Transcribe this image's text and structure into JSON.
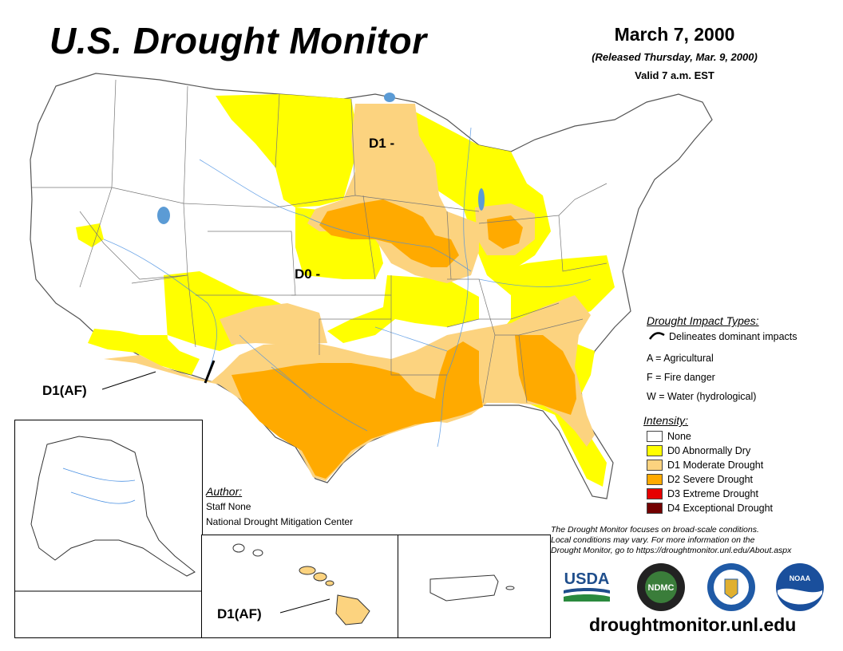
{
  "header": {
    "title": "U.S. Drought Monitor",
    "date": "March 7, 2000",
    "released": "(Released Thursday, Mar. 9, 2000)",
    "valid": "Valid 7 a.m. EST"
  },
  "map_labels": {
    "d1_north": "D1 -",
    "d0_central": "D0 -",
    "d1af_southwest": "D1(AF)",
    "d1af_hawaii": "D1(AF)"
  },
  "legend": {
    "impact_heading": "Drought Impact Types:",
    "impact_line": "Delineates dominant impacts",
    "impact_a": "A = Agricultural",
    "impact_f": "F = Fire danger",
    "impact_w": "W = Water (hydrological)",
    "intensity_heading": "Intensity:",
    "intensity": [
      {
        "label": "None",
        "color": "#ffffff"
      },
      {
        "label": "D0 Abnormally Dry",
        "color": "#ffff00"
      },
      {
        "label": "D1 Moderate Drought",
        "color": "#fcd37f"
      },
      {
        "label": "D2 Severe Drought",
        "color": "#ffaa00"
      },
      {
        "label": "D3 Extreme Drought",
        "color": "#e60000"
      },
      {
        "label": "D4 Exceptional Drought",
        "color": "#730000"
      }
    ]
  },
  "author": {
    "heading": "Author:",
    "name": "Staff None",
    "org": "National Drought Mitigation Center"
  },
  "note": {
    "line1": "The Drought Monitor focuses on broad-scale conditions.",
    "line2": "Local conditions may vary. For more information on the",
    "line3": "Drought Monitor, go to https://droughtmonitor.unl.edu/About.aspx"
  },
  "logos": {
    "usda": "USDA",
    "ndmc": "NDMC",
    "noaa": "NOAA"
  },
  "footer_url": "droughtmonitor.unl.edu"
}
